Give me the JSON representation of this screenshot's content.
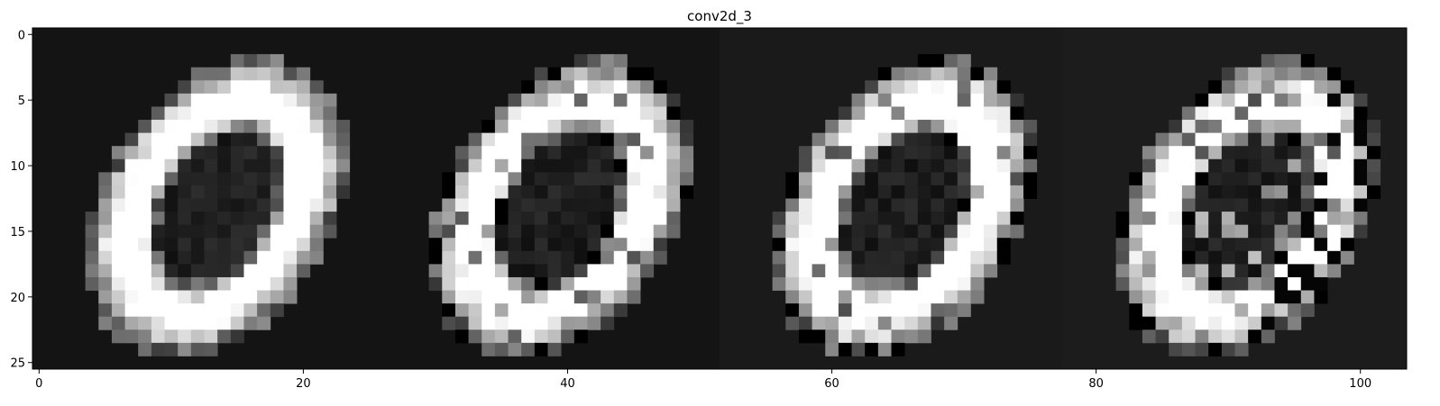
{
  "chart_data": {
    "type": "heatmap",
    "title": "conv2d_3",
    "xlabel": "",
    "ylabel": "",
    "colormap": "gray",
    "xlim": [
      -0.5,
      103.5
    ],
    "ylim": [
      25.5,
      -0.5
    ],
    "x_ticks": [
      0,
      20,
      40,
      60,
      80,
      100
    ],
    "y_ticks": [
      0,
      5,
      10,
      15,
      20,
      25
    ],
    "panels": [
      {
        "name": "",
        "x_range": [
          0,
          25
        ],
        "background": 0.08
      },
      {
        "name": "",
        "x_range": [
          26,
          51
        ],
        "background": 0.08
      },
      {
        "name": "",
        "x_range": [
          52,
          77
        ],
        "background": 0.1
      },
      {
        "name": "",
        "x_range": [
          78,
          103
        ],
        "background": 0.11
      }
    ],
    "grid": false
  }
}
